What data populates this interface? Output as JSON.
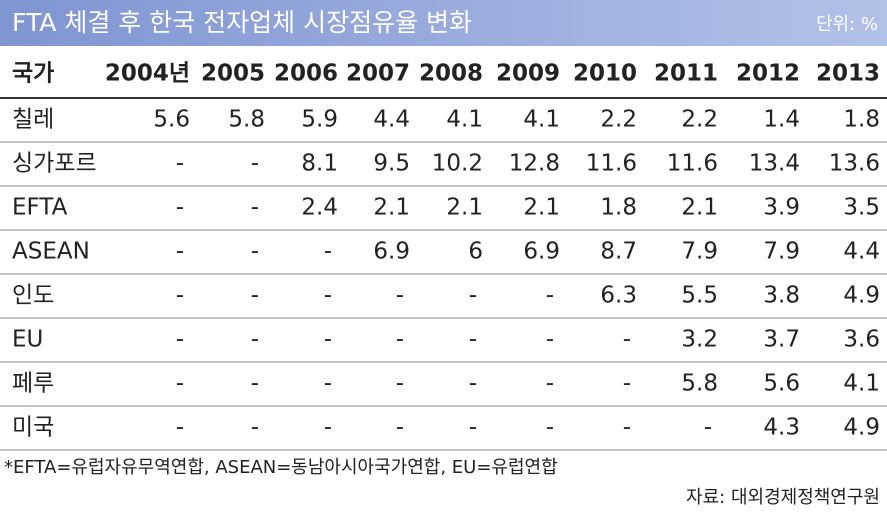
{
  "header": {
    "title": "FTA 체결 후 한국 전자업체 시장점유율 변화",
    "unit": "단위: %"
  },
  "table": {
    "columns": [
      "국가",
      "2004년",
      "2005",
      "2006",
      "2007",
      "2008",
      "2009",
      "2010",
      "2011",
      "2012",
      "2013"
    ],
    "rows": [
      [
        "칠레",
        "5.6",
        "5.8",
        "5.9",
        "4.4",
        "4.1",
        "4.1",
        "2.2",
        "2.2",
        "1.4",
        "1.8"
      ],
      [
        "싱가포르",
        "-",
        "-",
        "8.1",
        "9.5",
        "10.2",
        "12.8",
        "11.6",
        "11.6",
        "13.4",
        "13.6"
      ],
      [
        "EFTA",
        "-",
        "-",
        "2.4",
        "2.1",
        "2.1",
        "2.1",
        "1.8",
        "2.1",
        "3.9",
        "3.5"
      ],
      [
        "ASEAN",
        "-",
        "-",
        "-",
        "6.9",
        "6",
        "6.9",
        "8.7",
        "7.9",
        "7.9",
        "4.4"
      ],
      [
        "인도",
        "-",
        "-",
        "-",
        "-",
        "-",
        "-",
        "6.3",
        "5.5",
        "3.8",
        "4.9"
      ],
      [
        "EU",
        "-",
        "-",
        "-",
        "-",
        "-",
        "-",
        "-",
        "3.2",
        "3.7",
        "3.6"
      ],
      [
        "페루",
        "-",
        "-",
        "-",
        "-",
        "-",
        "-",
        "-",
        "5.8",
        "5.6",
        "4.1"
      ],
      [
        "미국",
        "-",
        "-",
        "-",
        "-",
        "-",
        "-",
        "-",
        "-",
        "4.3",
        "4.9"
      ]
    ]
  },
  "footnote": "*EFTA=유럽자유무역연합, ASEAN=동남아시아국가연합, EU=유럽연합",
  "source": "자료: 대외경제정책연구원"
}
